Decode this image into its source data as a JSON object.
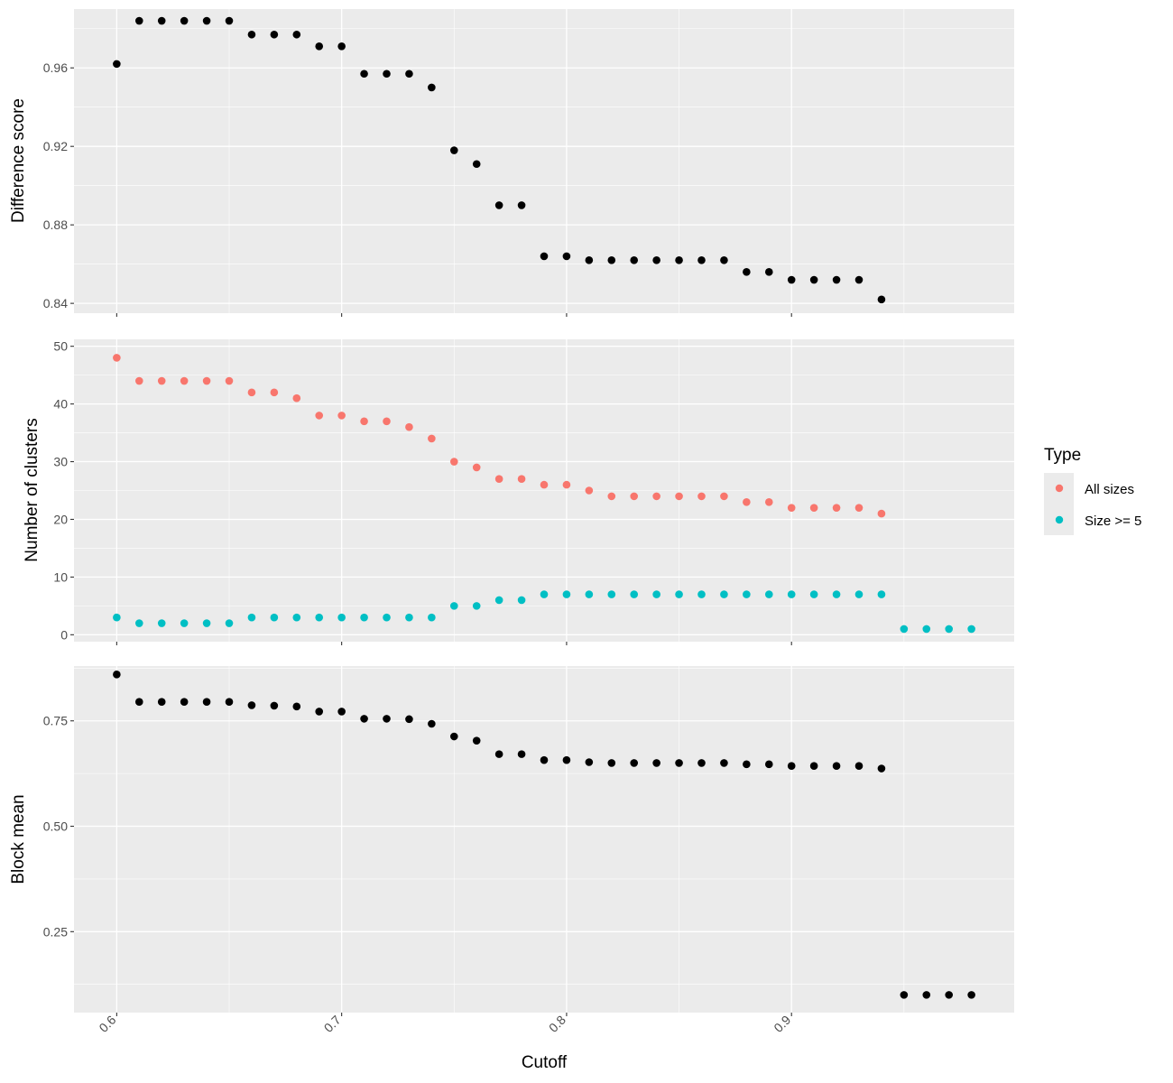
{
  "chart_data": [
    {
      "type": "scatter",
      "ylabel": "Difference score",
      "xlim": [
        0.581,
        0.999
      ],
      "ylim": [
        0.835,
        0.99
      ],
      "yticks": [
        "0.84",
        "0.88",
        "0.92",
        "0.96"
      ],
      "grid": true,
      "series": [
        {
          "color": "#000000",
          "x": [
            0.6,
            0.61,
            0.62,
            0.63,
            0.64,
            0.65,
            0.66,
            0.67,
            0.68,
            0.69,
            0.7,
            0.71,
            0.72,
            0.73,
            0.74,
            0.75,
            0.76,
            0.77,
            0.78,
            0.79,
            0.8,
            0.81,
            0.82,
            0.83,
            0.84,
            0.85,
            0.86,
            0.87,
            0.88,
            0.89,
            0.9,
            0.91,
            0.92,
            0.93,
            0.94
          ],
          "y": [
            0.962,
            0.984,
            0.984,
            0.984,
            0.984,
            0.984,
            0.977,
            0.977,
            0.977,
            0.971,
            0.971,
            0.957,
            0.957,
            0.957,
            0.95,
            0.918,
            0.911,
            0.89,
            0.89,
            0.864,
            0.864,
            0.862,
            0.862,
            0.862,
            0.862,
            0.862,
            0.862,
            0.862,
            0.856,
            0.856,
            0.852,
            0.852,
            0.852,
            0.852,
            0.842
          ]
        }
      ]
    },
    {
      "type": "scatter",
      "ylabel": "Number of clusters",
      "xlim": [
        0.581,
        0.999
      ],
      "ylim": [
        -1.2,
        51.2
      ],
      "yticks": [
        "0",
        "10",
        "20",
        "30",
        "40",
        "50"
      ],
      "grid": true,
      "legend": {
        "title": "Type",
        "placement": "right",
        "entries": [
          "All sizes",
          "Size >= 5"
        ]
      },
      "series": [
        {
          "name": "All sizes",
          "color": "#F8766D",
          "x": [
            0.6,
            0.61,
            0.62,
            0.63,
            0.64,
            0.65,
            0.66,
            0.67,
            0.68,
            0.69,
            0.7,
            0.71,
            0.72,
            0.73,
            0.74,
            0.75,
            0.76,
            0.77,
            0.78,
            0.79,
            0.8,
            0.81,
            0.82,
            0.83,
            0.84,
            0.85,
            0.86,
            0.87,
            0.88,
            0.89,
            0.9,
            0.91,
            0.92,
            0.93,
            0.94
          ],
          "y": [
            48,
            44,
            44,
            44,
            44,
            44,
            42,
            42,
            41,
            38,
            38,
            37,
            37,
            36,
            34,
            30,
            29,
            27,
            27,
            26,
            26,
            25,
            24,
            24,
            24,
            24,
            24,
            24,
            23,
            23,
            22,
            22,
            22,
            22,
            21
          ]
        },
        {
          "name": "Size >= 5",
          "color": "#00BFC4",
          "x": [
            0.6,
            0.61,
            0.62,
            0.63,
            0.64,
            0.65,
            0.66,
            0.67,
            0.68,
            0.69,
            0.7,
            0.71,
            0.72,
            0.73,
            0.74,
            0.75,
            0.76,
            0.77,
            0.78,
            0.79,
            0.8,
            0.81,
            0.82,
            0.83,
            0.84,
            0.85,
            0.86,
            0.87,
            0.88,
            0.89,
            0.9,
            0.91,
            0.92,
            0.93,
            0.94,
            0.95,
            0.96,
            0.97,
            0.98
          ],
          "y": [
            3,
            2,
            2,
            2,
            2,
            2,
            3,
            3,
            3,
            3,
            3,
            3,
            3,
            3,
            3,
            5,
            5,
            6,
            6,
            7,
            7,
            7,
            7,
            7,
            7,
            7,
            7,
            7,
            7,
            7,
            7,
            7,
            7,
            7,
            7,
            1,
            1,
            1,
            1
          ]
        }
      ]
    },
    {
      "type": "scatter",
      "ylabel": "Block mean",
      "xlabel": "Cutoff",
      "xlim": [
        0.581,
        0.999
      ],
      "ylim": [
        0.058,
        0.88
      ],
      "yticks": [
        "0.25",
        "0.50",
        "0.75"
      ],
      "xticks": [
        "0.6",
        "0.7",
        "0.8",
        "0.9"
      ],
      "grid": true,
      "series": [
        {
          "color": "#000000",
          "x": [
            0.6,
            0.61,
            0.62,
            0.63,
            0.64,
            0.65,
            0.66,
            0.67,
            0.68,
            0.69,
            0.7,
            0.71,
            0.72,
            0.73,
            0.74,
            0.75,
            0.76,
            0.77,
            0.78,
            0.79,
            0.8,
            0.81,
            0.82,
            0.83,
            0.84,
            0.85,
            0.86,
            0.87,
            0.88,
            0.89,
            0.9,
            0.91,
            0.92,
            0.93,
            0.94,
            0.95,
            0.96,
            0.97,
            0.98
          ],
          "y": [
            0.86,
            0.795,
            0.795,
            0.795,
            0.795,
            0.795,
            0.787,
            0.786,
            0.784,
            0.772,
            0.772,
            0.755,
            0.755,
            0.754,
            0.743,
            0.713,
            0.703,
            0.671,
            0.671,
            0.657,
            0.657,
            0.652,
            0.65,
            0.65,
            0.65,
            0.65,
            0.65,
            0.65,
            0.647,
            0.647,
            0.643,
            0.643,
            0.643,
            0.643,
            0.637,
            0.1,
            0.1,
            0.1,
            0.1
          ]
        }
      ]
    }
  ]
}
